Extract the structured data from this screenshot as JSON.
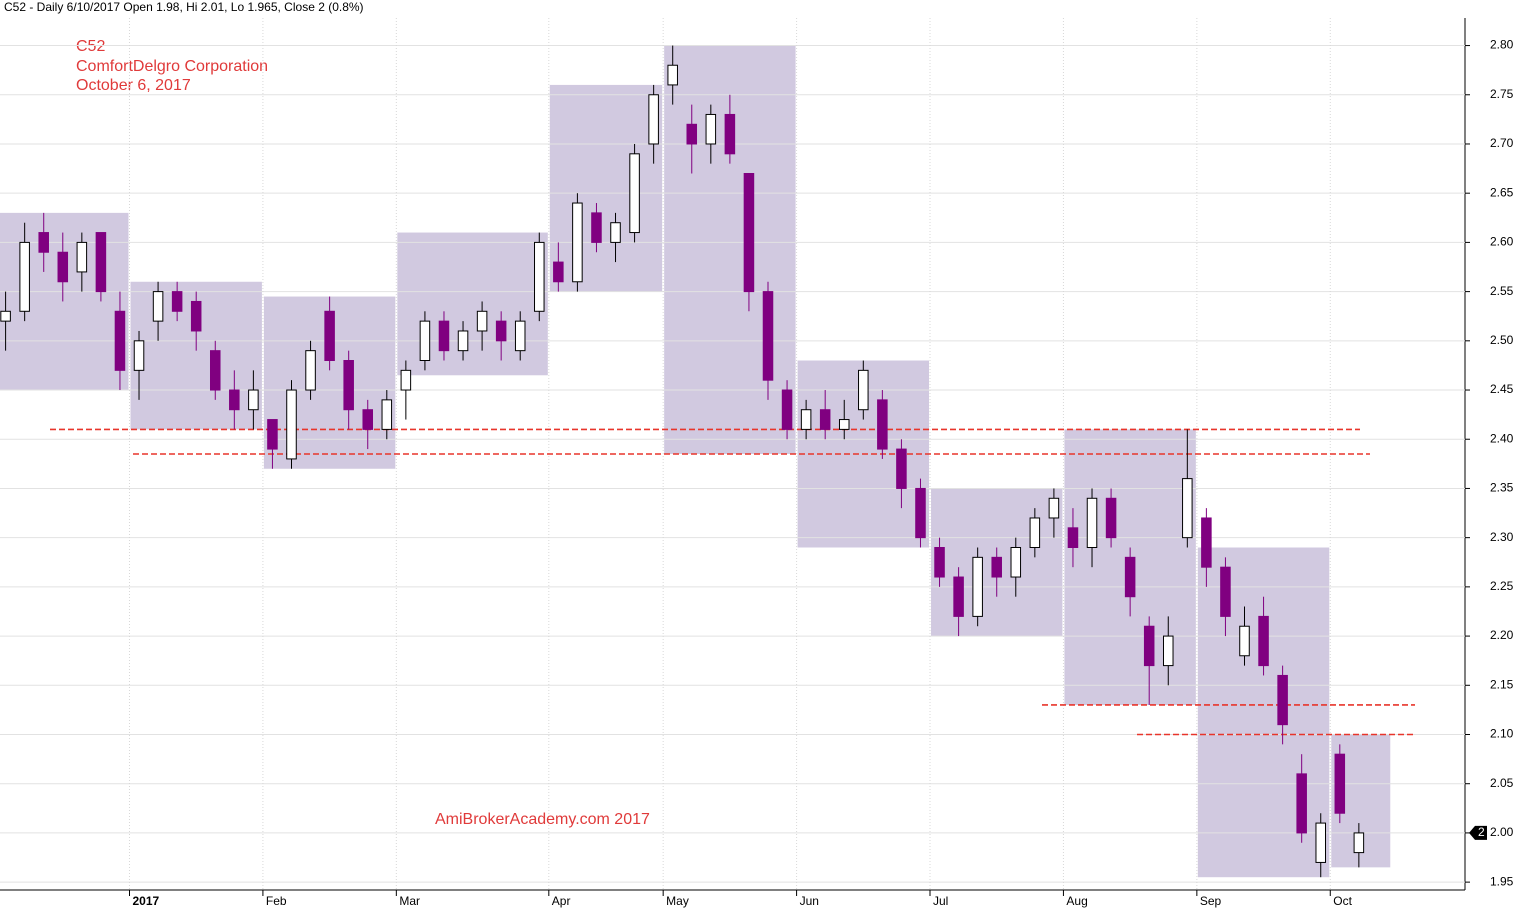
{
  "chart_data": {
    "type": "candlestick",
    "header": "C52 - Daily 6/10/2017 Open 1.98, Hi 2.01, Lo 1.965, Close 2 (0.8%)",
    "title_lines": [
      "C52",
      "ComfortDelgro Corporation",
      "October 6, 2017"
    ],
    "watermark": "AmiBrokerAcademy.com  2017",
    "categories": [
      null,
      null,
      null,
      null,
      null,
      null,
      null,
      "2017",
      null,
      null,
      null,
      null,
      null,
      null,
      "Feb",
      null,
      null,
      null,
      null,
      null,
      null,
      "Mar",
      null,
      null,
      null,
      null,
      null,
      null,
      null,
      "Apr",
      null,
      null,
      null,
      null,
      null,
      "May",
      null,
      null,
      null,
      null,
      null,
      null,
      "Jun",
      null,
      null,
      null,
      null,
      null,
      null,
      "Jul",
      null,
      null,
      null,
      null,
      null,
      null,
      "Aug",
      null,
      null,
      null,
      null,
      null,
      null,
      "Sep",
      null,
      null,
      null,
      null,
      null,
      null,
      "Oct",
      null
    ],
    "open": [
      2.52,
      2.53,
      2.61,
      2.59,
      2.57,
      2.61,
      2.53,
      2.47,
      2.52,
      2.55,
      2.54,
      2.49,
      2.45,
      2.43,
      2.42,
      2.38,
      2.45,
      2.53,
      2.48,
      2.43,
      2.41,
      2.45,
      2.48,
      2.52,
      2.49,
      2.51,
      2.52,
      2.49,
      2.53,
      2.58,
      2.56,
      2.63,
      2.6,
      2.61,
      2.7,
      2.76,
      2.72,
      2.7,
      2.73,
      2.67,
      2.55,
      2.45,
      2.41,
      2.43,
      2.41,
      2.43,
      2.44,
      2.39,
      2.35,
      2.29,
      2.26,
      2.22,
      2.28,
      2.26,
      2.29,
      2.32,
      2.31,
      2.29,
      2.34,
      2.28,
      2.21,
      2.17,
      2.3,
      2.32,
      2.27,
      2.18,
      2.22,
      2.16,
      2.06,
      1.97,
      2.08,
      1.98
    ],
    "high": [
      2.55,
      2.62,
      2.63,
      2.61,
      2.61,
      2.61,
      2.55,
      2.51,
      2.56,
      2.56,
      2.55,
      2.5,
      2.47,
      2.47,
      2.42,
      2.46,
      2.5,
      2.545,
      2.49,
      2.44,
      2.45,
      2.48,
      2.53,
      2.53,
      2.52,
      2.54,
      2.53,
      2.53,
      2.61,
      2.6,
      2.65,
      2.64,
      2.63,
      2.7,
      2.76,
      2.8,
      2.74,
      2.74,
      2.75,
      2.67,
      2.56,
      2.46,
      2.44,
      2.45,
      2.44,
      2.48,
      2.45,
      2.4,
      2.36,
      2.3,
      2.27,
      2.29,
      2.29,
      2.3,
      2.33,
      2.35,
      2.33,
      2.35,
      2.35,
      2.29,
      2.22,
      2.22,
      2.41,
      2.33,
      2.28,
      2.23,
      2.24,
      2.17,
      2.08,
      2.02,
      2.09,
      2.01
    ],
    "low": [
      2.49,
      2.52,
      2.57,
      2.54,
      2.55,
      2.54,
      2.45,
      2.44,
      2.5,
      2.52,
      2.49,
      2.44,
      2.41,
      2.41,
      2.37,
      2.37,
      2.44,
      2.47,
      2.41,
      2.39,
      2.4,
      2.42,
      2.47,
      2.48,
      2.48,
      2.49,
      2.48,
      2.48,
      2.52,
      2.55,
      2.55,
      2.59,
      2.58,
      2.6,
      2.68,
      2.74,
      2.67,
      2.68,
      2.68,
      2.53,
      2.44,
      2.4,
      2.4,
      2.4,
      2.4,
      2.42,
      2.38,
      2.33,
      2.29,
      2.25,
      2.2,
      2.21,
      2.24,
      2.24,
      2.28,
      2.3,
      2.27,
      2.27,
      2.29,
      2.22,
      2.13,
      2.15,
      2.29,
      2.25,
      2.2,
      2.17,
      2.16,
      2.09,
      1.99,
      1.955,
      2.01,
      1.965
    ],
    "close": [
      2.53,
      2.6,
      2.59,
      2.56,
      2.6,
      2.55,
      2.47,
      2.5,
      2.55,
      2.53,
      2.51,
      2.45,
      2.43,
      2.45,
      2.39,
      2.45,
      2.49,
      2.48,
      2.43,
      2.41,
      2.44,
      2.47,
      2.52,
      2.49,
      2.51,
      2.53,
      2.5,
      2.52,
      2.6,
      2.56,
      2.64,
      2.6,
      2.62,
      2.69,
      2.75,
      2.78,
      2.7,
      2.73,
      2.69,
      2.55,
      2.46,
      2.41,
      2.43,
      2.41,
      2.42,
      2.47,
      2.39,
      2.35,
      2.3,
      2.26,
      2.22,
      2.28,
      2.26,
      2.29,
      2.32,
      2.34,
      2.29,
      2.34,
      2.3,
      2.24,
      2.17,
      2.2,
      2.36,
      2.27,
      2.22,
      2.21,
      2.17,
      2.11,
      2.0,
      2.01,
      2.02,
      2
    ],
    "up_color": "#ffffff",
    "down_color": "#800080",
    "box_color": "#c9bfdb",
    "ranges": [
      {
        "low": 2.45,
        "high": 2.63
      },
      {
        "low": 2.41,
        "high": 2.56
      },
      {
        "low": 2.37,
        "high": 2.545
      },
      {
        "low": 2.465,
        "high": 2.61
      },
      {
        "low": 2.55,
        "high": 2.76
      },
      {
        "low": 2.385,
        "high": 2.8
      },
      {
        "low": 2.29,
        "high": 2.48
      },
      {
        "low": 2.2,
        "high": 2.35
      },
      {
        "low": 2.13,
        "high": 2.41
      },
      {
        "low": 1.955,
        "high": 2.29
      },
      {
        "low": 1.965,
        "high": 2.1
      }
    ],
    "support_levels": [
      2.41,
      2.385,
      2.13,
      2.1
    ],
    "ylim": [
      1.942,
      2.828
    ],
    "yticks": [
      1.95,
      {
        "value": 2,
        "label": "2.00"
      },
      2.05,
      {
        "value": 2.1,
        "label": "2.10"
      },
      2.15,
      {
        "value": 2.2,
        "label": "2.20"
      },
      2.25,
      {
        "value": 2.3,
        "label": "2.30"
      },
      2.35,
      {
        "value": 2.4,
        "label": "2.40"
      },
      2.45,
      {
        "value": 2.5,
        "label": "2.50"
      },
      2.55,
      {
        "value": 2.6,
        "label": "2.60"
      },
      2.65,
      {
        "value": 2.7,
        "label": "2.70"
      },
      2.75,
      {
        "value": 2.8,
        "label": "2.80"
      }
    ],
    "grid": true
  }
}
